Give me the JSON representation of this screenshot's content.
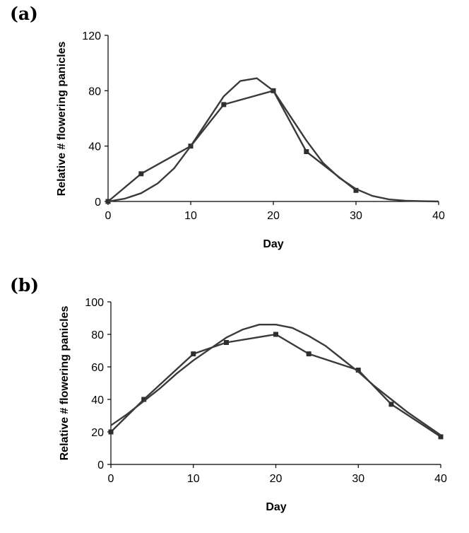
{
  "chart_data": [
    {
      "panel_label": "(a)",
      "type": "line",
      "xlabel": "Day",
      "ylabel": "Relative # flowering panicles",
      "xlim": [
        0,
        40
      ],
      "ylim": [
        0,
        120
      ],
      "xticks": [
        0,
        10,
        20,
        30,
        40
      ],
      "yticks": [
        0,
        40,
        80,
        120
      ],
      "grid": false,
      "legend": "none",
      "series": [
        {
          "marker": "square",
          "x": [
            0,
            4,
            10,
            14,
            20,
            24,
            30
          ],
          "y": [
            0,
            20,
            40,
            70,
            80,
            36,
            8
          ]
        },
        {
          "marker": "none",
          "x": [
            0,
            2,
            4,
            6,
            8,
            10,
            12,
            14,
            16,
            18,
            20,
            22,
            24,
            26,
            28,
            30,
            32,
            34,
            36,
            38,
            40
          ],
          "y": [
            0,
            2,
            6,
            13,
            24,
            40,
            58,
            76,
            87,
            89,
            80,
            62,
            44,
            28,
            17,
            9,
            4,
            1.5,
            0.5,
            0.2,
            0
          ]
        }
      ]
    },
    {
      "panel_label": "(b)",
      "type": "line",
      "xlabel": "Day",
      "ylabel": "Relative # flowering panicles",
      "xlim": [
        0,
        40
      ],
      "ylim": [
        0,
        100
      ],
      "xticks": [
        0,
        10,
        20,
        30,
        40
      ],
      "yticks": [
        0,
        20,
        40,
        60,
        80,
        100
      ],
      "grid": false,
      "legend": "none",
      "series": [
        {
          "marker": "square",
          "x": [
            0,
            4,
            10,
            14,
            20,
            24,
            30,
            34,
            40
          ],
          "y": [
            20,
            40,
            68,
            75,
            80,
            68,
            58,
            37,
            17
          ]
        },
        {
          "marker": "none",
          "x": [
            0,
            2,
            4,
            6,
            8,
            10,
            12,
            14,
            16,
            18,
            20,
            22,
            24,
            26,
            28,
            30,
            32,
            34,
            36,
            38,
            40
          ],
          "y": [
            24,
            31,
            39,
            47,
            56,
            64,
            71,
            78,
            83,
            86,
            86,
            84,
            79,
            73,
            65,
            57,
            48,
            40,
            32,
            25,
            18
          ]
        }
      ]
    }
  ]
}
